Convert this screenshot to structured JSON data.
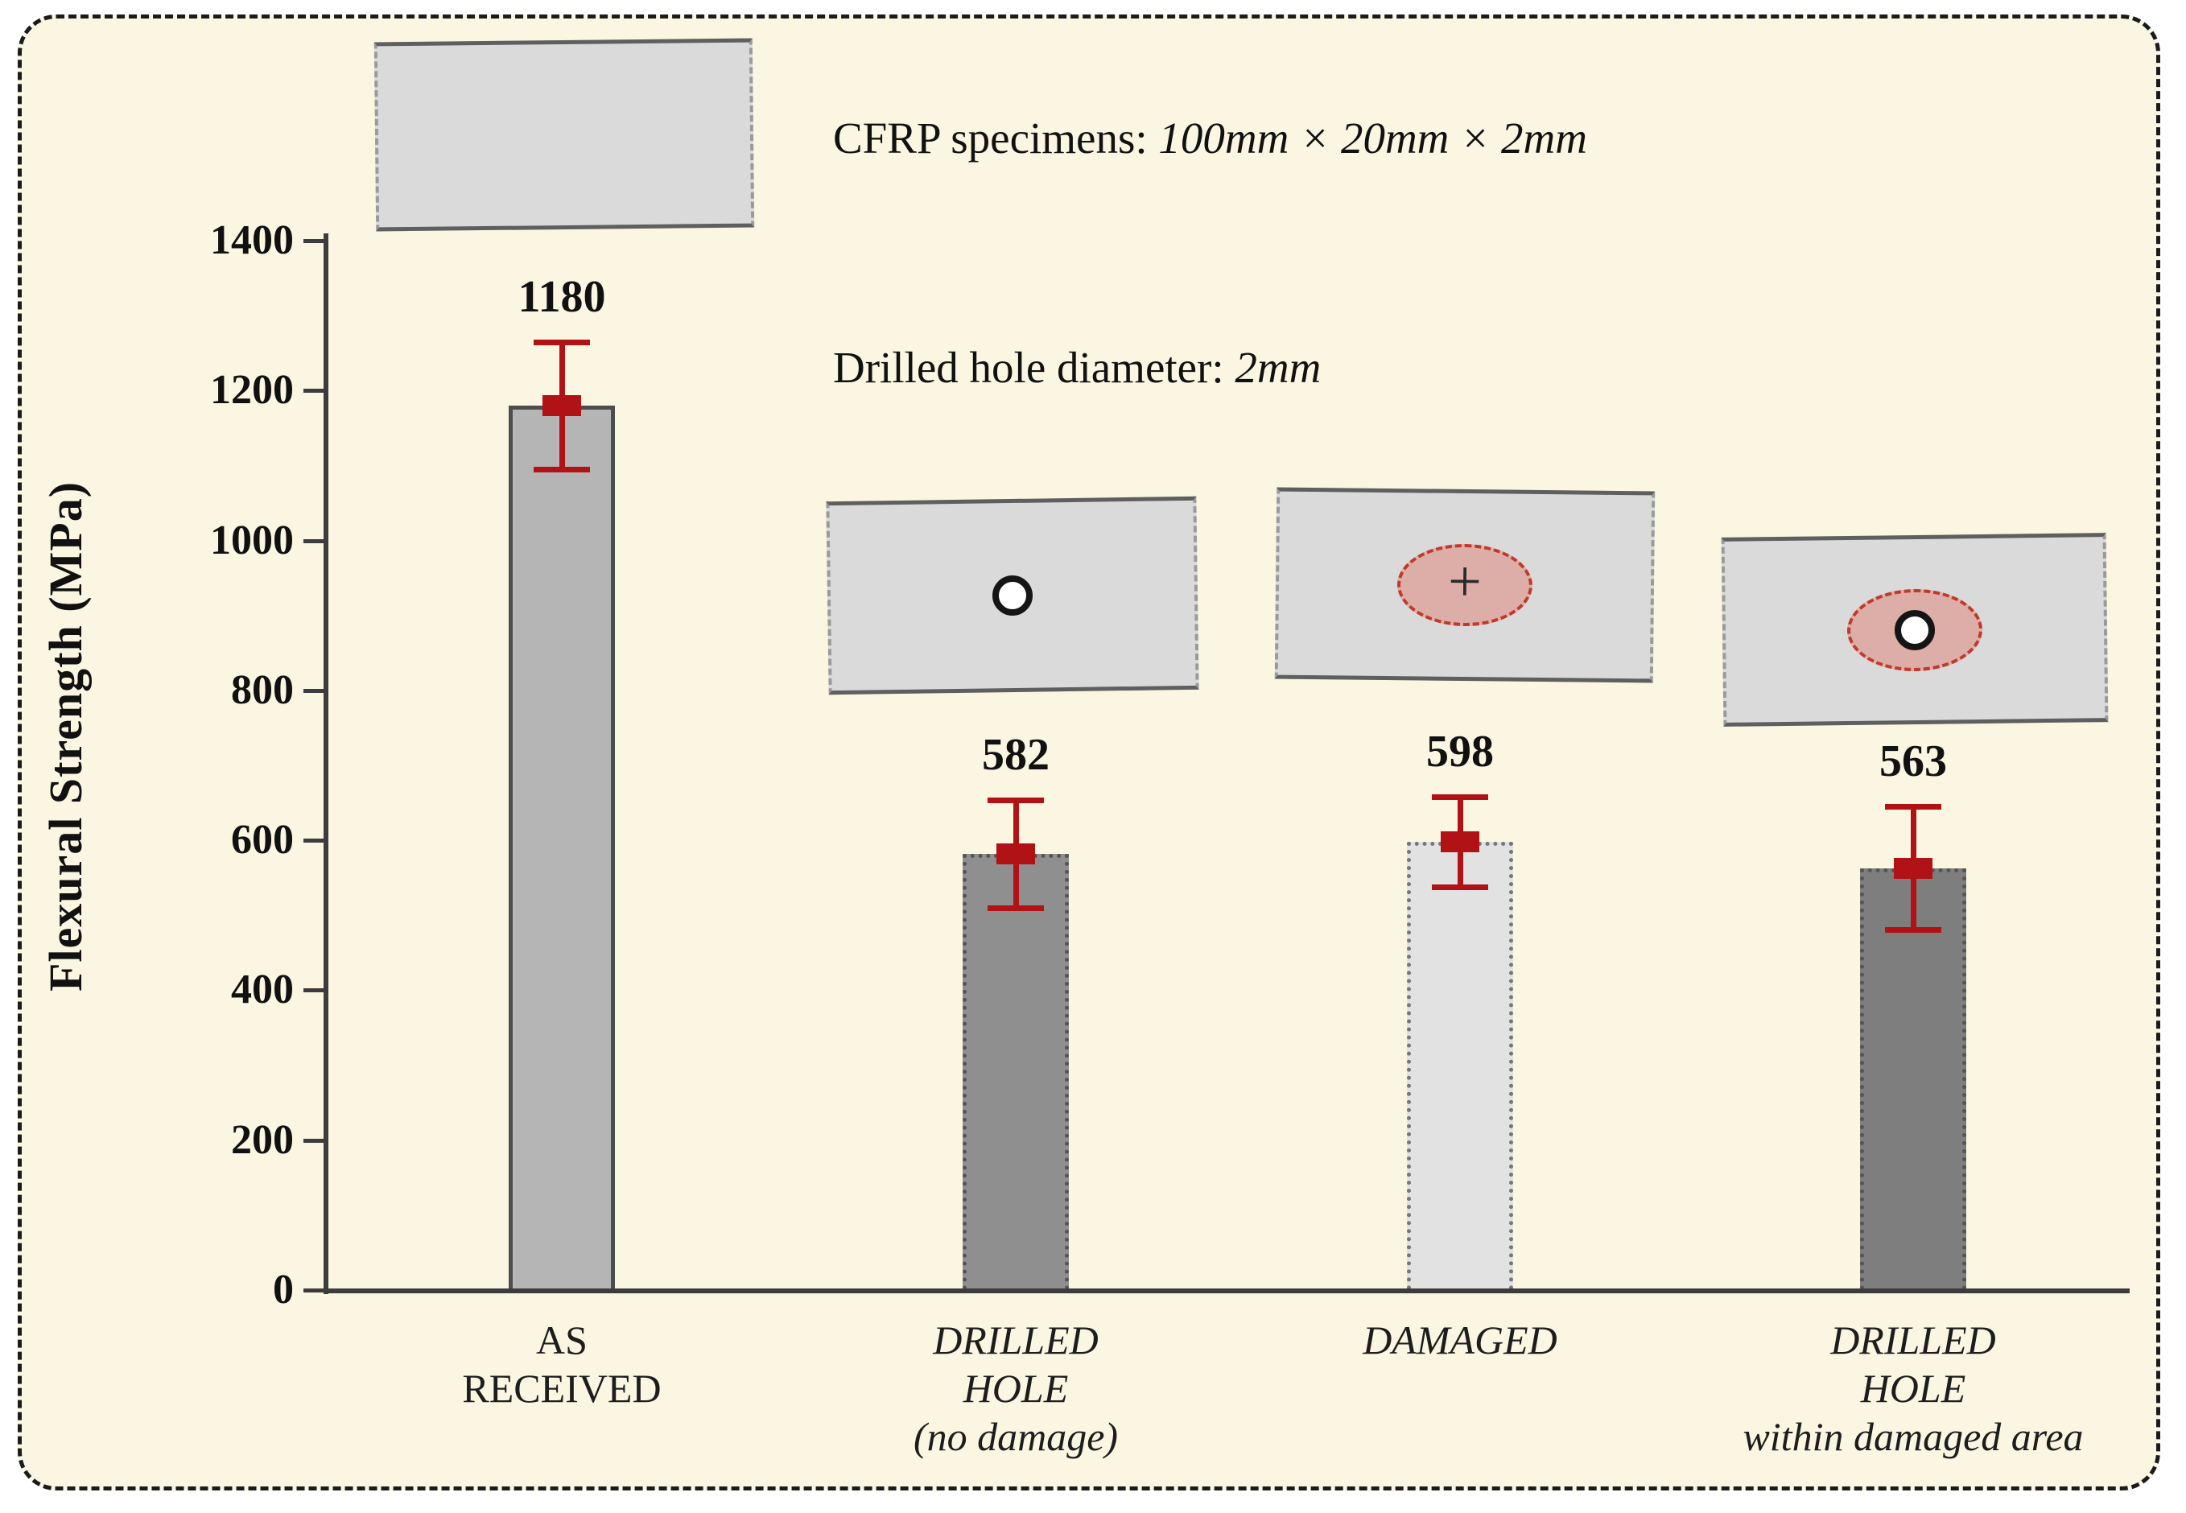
{
  "chart_data": {
    "type": "bar",
    "title": "",
    "xlabel": "",
    "ylabel": "Flexural Strength (MPa)",
    "ylim": [
      0,
      1400
    ],
    "yticks": [
      0,
      200,
      400,
      600,
      800,
      1000,
      1200,
      1400
    ],
    "grid": false,
    "legend": false,
    "categories": [
      "AS RECEIVED",
      "DRILLED HOLE (no damage)",
      "DAMAGED",
      "DRILLED HOLE within damaged area"
    ],
    "values": [
      1180,
      582,
      598,
      563
    ],
    "errors": [
      85,
      72,
      60,
      82
    ],
    "bars": [
      {
        "label_lines": [
          "AS",
          "RECEIVED"
        ],
        "italic": false,
        "fill": "#b5b5b5",
        "border_style": "solid",
        "border_color": "#4d4d4d"
      },
      {
        "label_lines": [
          "DRILLED",
          "HOLE",
          "(no damage)"
        ],
        "italic": true,
        "fill": "#8f8f8f",
        "border_style": "dotted",
        "border_color": "#555555"
      },
      {
        "label_lines": [
          "DAMAGED"
        ],
        "italic": true,
        "fill": "#e2e2e2",
        "border_style": "dotted",
        "border_color": "#777777"
      },
      {
        "label_lines": [
          "DRILLED",
          "HOLE",
          "within damaged area"
        ],
        "italic": true,
        "fill": "#7e7e7e",
        "border_style": "dotted",
        "border_color": "#555555"
      }
    ],
    "colors": {
      "error_bar": "#b01216",
      "axis": "#3c3c3c",
      "background": "#fbf6e2"
    }
  },
  "annotations": {
    "specimen_note_prefix": "CFRP specimens: ",
    "specimen_note_value": "100mm × 20mm × 2mm",
    "hole_note_prefix": "Drilled hole diameter: ",
    "hole_note_value": "2mm"
  },
  "specimens": {
    "damaged_marker": "+"
  }
}
